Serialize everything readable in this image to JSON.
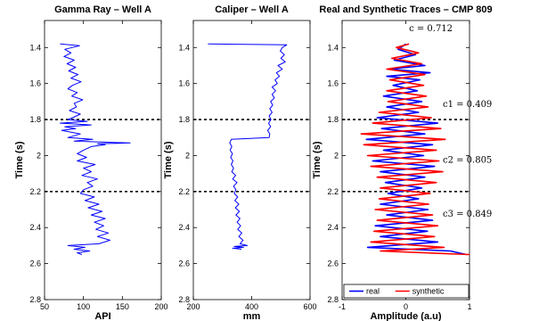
{
  "colors": {
    "blue": "#0000ff",
    "red": "#ff0000",
    "marker": "#000000"
  },
  "chart_data": [
    {
      "type": "line",
      "title": "Gamma Ray – Well A",
      "xlabel": "API",
      "ylabel": "Time (s)",
      "xlim": [
        50,
        200
      ],
      "ylim": [
        1.25,
        2.8
      ],
      "y_inverted": true,
      "xticks": [
        50,
        100,
        150,
        200
      ],
      "yticks": [
        1.4,
        1.6,
        1.8,
        2,
        2.2,
        2.4,
        2.6,
        2.8
      ],
      "xtick_labels": [
        "50",
        "100",
        "150",
        "200"
      ],
      "ytick_labels": [
        "1.4",
        "1.6",
        "1.8",
        "2",
        "2.2",
        "2.4",
        "2.6",
        "2.8"
      ],
      "horizontal_markers": [
        1.8,
        2.2
      ],
      "series": [
        {
          "color": "blue",
          "points": [
            [
              1.38,
              70
            ],
            [
              1.39,
              95
            ],
            [
              1.41,
              76
            ],
            [
              1.43,
              84
            ],
            [
              1.45,
              75
            ],
            [
              1.47,
              88
            ],
            [
              1.49,
              79
            ],
            [
              1.51,
              90
            ],
            [
              1.53,
              81
            ],
            [
              1.55,
              93
            ],
            [
              1.57,
              84
            ],
            [
              1.59,
              97
            ],
            [
              1.61,
              86
            ],
            [
              1.63,
              80
            ],
            [
              1.65,
              92
            ],
            [
              1.67,
              85
            ],
            [
              1.69,
              99
            ],
            [
              1.71,
              88
            ],
            [
              1.73,
              91
            ],
            [
              1.75,
              82
            ],
            [
              1.77,
              96
            ],
            [
              1.79,
              86
            ],
            [
              1.8,
              80
            ],
            [
              1.81,
              105
            ],
            [
              1.82,
              70
            ],
            [
              1.83,
              110
            ],
            [
              1.84,
              76
            ],
            [
              1.85,
              90
            ],
            [
              1.86,
              72
            ],
            [
              1.88,
              96
            ],
            [
              1.9,
              80
            ],
            [
              1.91,
              112
            ],
            [
              1.92,
              88
            ],
            [
              1.93,
              160
            ],
            [
              1.935,
              118
            ],
            [
              1.94,
              128
            ],
            [
              1.95,
              110
            ],
            [
              1.97,
              100
            ],
            [
              1.99,
              92
            ],
            [
              2.01,
              104
            ],
            [
              2.03,
              92
            ],
            [
              2.05,
              115
            ],
            [
              2.07,
              100
            ],
            [
              2.09,
              110
            ],
            [
              2.11,
              98
            ],
            [
              2.13,
              118
            ],
            [
              2.15,
              105
            ],
            [
              2.17,
              112
            ],
            [
              2.19,
              100
            ],
            [
              2.21,
              96
            ],
            [
              2.23,
              114
            ],
            [
              2.25,
              102
            ],
            [
              2.27,
              120
            ],
            [
              2.29,
              106
            ],
            [
              2.31,
              124
            ],
            [
              2.33,
              110
            ],
            [
              2.35,
              128
            ],
            [
              2.37,
              114
            ],
            [
              2.39,
              126
            ],
            [
              2.41,
              116
            ],
            [
              2.43,
              132
            ],
            [
              2.45,
              118
            ],
            [
              2.47,
              134
            ],
            [
              2.49,
              120
            ],
            [
              2.5,
              80
            ],
            [
              2.51,
              102
            ],
            [
              2.52,
              88
            ],
            [
              2.53,
              108
            ],
            [
              2.54,
              92
            ],
            [
              2.55,
              98
            ]
          ]
        }
      ]
    },
    {
      "type": "line",
      "title": "Caliper – Well A",
      "xlabel": "mm",
      "ylabel": "Time (s)",
      "xlim": [
        200,
        600
      ],
      "ylim": [
        1.25,
        2.8
      ],
      "y_inverted": true,
      "xticks": [
        200,
        400,
        600
      ],
      "yticks": [
        1.4,
        1.6,
        1.8,
        2,
        2.2,
        2.4,
        2.6,
        2.8
      ],
      "xtick_labels": [
        "200",
        "400",
        "600"
      ],
      "ytick_labels": [
        "1.4",
        "1.6",
        "1.8",
        "2",
        "2.2",
        "2.4",
        "2.6",
        "2.8"
      ],
      "horizontal_markers": [
        1.8,
        2.2
      ],
      "series": [
        {
          "color": "blue",
          "points": [
            [
              1.38,
              250
            ],
            [
              1.385,
              520
            ],
            [
              1.4,
              505
            ],
            [
              1.42,
              498
            ],
            [
              1.44,
              512
            ],
            [
              1.46,
              500
            ],
            [
              1.48,
              515
            ],
            [
              1.5,
              490
            ],
            [
              1.52,
              505
            ],
            [
              1.54,
              485
            ],
            [
              1.56,
              495
            ],
            [
              1.58,
              480
            ],
            [
              1.6,
              488
            ],
            [
              1.62,
              470
            ],
            [
              1.64,
              482
            ],
            [
              1.66,
              470
            ],
            [
              1.68,
              478
            ],
            [
              1.7,
              465
            ],
            [
              1.72,
              472
            ],
            [
              1.74,
              462
            ],
            [
              1.76,
              470
            ],
            [
              1.78,
              460
            ],
            [
              1.8,
              466
            ],
            [
              1.82,
              458
            ],
            [
              1.84,
              465
            ],
            [
              1.86,
              455
            ],
            [
              1.88,
              462
            ],
            [
              1.9,
              460
            ],
            [
              1.91,
              330
            ],
            [
              1.93,
              325
            ],
            [
              1.95,
              332
            ],
            [
              1.97,
              326
            ],
            [
              1.99,
              334
            ],
            [
              2.01,
              328
            ],
            [
              2.03,
              336
            ],
            [
              2.05,
              330
            ],
            [
              2.07,
              338
            ],
            [
              2.09,
              332
            ],
            [
              2.11,
              345
            ],
            [
              2.13,
              335
            ],
            [
              2.15,
              350
            ],
            [
              2.17,
              338
            ],
            [
              2.19,
              346
            ],
            [
              2.21,
              340
            ],
            [
              2.23,
              352
            ],
            [
              2.25,
              342
            ],
            [
              2.27,
              356
            ],
            [
              2.29,
              344
            ],
            [
              2.31,
              358
            ],
            [
              2.33,
              346
            ],
            [
              2.35,
              360
            ],
            [
              2.37,
              350
            ],
            [
              2.39,
              362
            ],
            [
              2.41,
              352
            ],
            [
              2.43,
              366
            ],
            [
              2.45,
              356
            ],
            [
              2.47,
              370
            ],
            [
              2.49,
              360
            ],
            [
              2.5,
              385
            ],
            [
              2.505,
              340
            ],
            [
              2.51,
              372
            ],
            [
              2.515,
              335
            ],
            [
              2.52,
              365
            ]
          ]
        }
      ]
    },
    {
      "type": "line",
      "title": "Real and Synthetic Traces – CMP 809",
      "xlabel": "Amplitude (a.u)",
      "ylabel": "Time (s)",
      "xlim": [
        -1,
        1
      ],
      "ylim": [
        1.25,
        2.8
      ],
      "y_inverted": true,
      "xticks": [
        -1,
        0,
        1
      ],
      "yticks": [
        1.4,
        1.6,
        1.8,
        2,
        2.2,
        2.4,
        2.6,
        2.8
      ],
      "xtick_labels": [
        "-1",
        "0",
        "1"
      ],
      "ytick_labels": [
        "1.4",
        "1.6",
        "1.8",
        "2",
        "2.2",
        "2.4",
        "2.6",
        "2.8"
      ],
      "horizontal_markers": [
        1.8,
        2.2
      ],
      "legend": {
        "placement": "bottom-left"
      },
      "annotations": [
        {
          "text": "c = 0.712",
          "at": [
            0.05,
            1.31
          ]
        },
        {
          "text": "c1 = 0.409",
          "at": [
            0.58,
            1.73
          ]
        },
        {
          "text": "c2 = 0.805",
          "at": [
            0.58,
            2.04
          ]
        },
        {
          "text": "c3 = 0.849",
          "at": [
            0.58,
            2.34
          ]
        }
      ],
      "series": [
        {
          "name": "real",
          "color": "blue",
          "points": [
            [
              1.38,
              0.0
            ],
            [
              1.41,
              -0.12
            ],
            [
              1.44,
              0.15
            ],
            [
              1.47,
              -0.18
            ],
            [
              1.5,
              0.3
            ],
            [
              1.52,
              -0.25
            ],
            [
              1.54,
              0.38
            ],
            [
              1.56,
              -0.3
            ],
            [
              1.58,
              0.22
            ],
            [
              1.61,
              -0.2
            ],
            [
              1.64,
              0.18
            ],
            [
              1.67,
              -0.35
            ],
            [
              1.7,
              0.25
            ],
            [
              1.73,
              -0.3
            ],
            [
              1.76,
              0.2
            ],
            [
              1.79,
              -0.45
            ],
            [
              1.82,
              0.5
            ],
            [
              1.85,
              -0.38
            ],
            [
              1.88,
              0.3
            ],
            [
              1.91,
              -0.62
            ],
            [
              1.94,
              0.42
            ],
            [
              1.97,
              -0.35
            ],
            [
              2.0,
              0.28
            ],
            [
              2.03,
              -0.52
            ],
            [
              2.06,
              0.45
            ],
            [
              2.09,
              -0.4
            ],
            [
              2.12,
              0.3
            ],
            [
              2.15,
              -0.32
            ],
            [
              2.18,
              0.25
            ],
            [
              2.21,
              -0.28
            ],
            [
              2.24,
              0.2
            ],
            [
              2.27,
              -0.4
            ],
            [
              2.3,
              0.35
            ],
            [
              2.33,
              -0.3
            ],
            [
              2.36,
              0.42
            ],
            [
              2.39,
              -0.48
            ],
            [
              2.42,
              0.34
            ],
            [
              2.45,
              -0.4
            ],
            [
              2.48,
              0.5
            ],
            [
              2.51,
              -0.6
            ],
            [
              2.53,
              0.7
            ],
            [
              2.55,
              0.95
            ]
          ]
        },
        {
          "name": "synthetic",
          "color": "red",
          "points": [
            [
              1.38,
              0.05
            ],
            [
              1.4,
              -0.15
            ],
            [
              1.43,
              0.2
            ],
            [
              1.46,
              -0.22
            ],
            [
              1.49,
              0.25
            ],
            [
              1.52,
              -0.3
            ],
            [
              1.55,
              0.3
            ],
            [
              1.58,
              -0.25
            ],
            [
              1.61,
              0.28
            ],
            [
              1.64,
              -0.3
            ],
            [
              1.67,
              0.32
            ],
            [
              1.7,
              -0.28
            ],
            [
              1.73,
              0.35
            ],
            [
              1.76,
              -0.42
            ],
            [
              1.79,
              0.4
            ],
            [
              1.82,
              -0.52
            ],
            [
              1.85,
              0.55
            ],
            [
              1.88,
              -0.7
            ],
            [
              1.91,
              0.62
            ],
            [
              1.94,
              -0.66
            ],
            [
              1.97,
              0.48
            ],
            [
              2.0,
              -0.6
            ],
            [
              2.03,
              0.52
            ],
            [
              2.06,
              -0.55
            ],
            [
              2.09,
              0.58
            ],
            [
              2.12,
              -0.45
            ],
            [
              2.15,
              0.48
            ],
            [
              2.18,
              -0.4
            ],
            [
              2.21,
              0.38
            ],
            [
              2.24,
              -0.42
            ],
            [
              2.27,
              0.36
            ],
            [
              2.3,
              -0.48
            ],
            [
              2.33,
              0.42
            ],
            [
              2.36,
              -0.45
            ],
            [
              2.39,
              0.5
            ],
            [
              2.42,
              -0.5
            ],
            [
              2.45,
              0.45
            ],
            [
              2.48,
              -0.55
            ],
            [
              2.51,
              0.6
            ],
            [
              2.53,
              -0.4
            ],
            [
              2.55,
              1.0
            ]
          ]
        }
      ]
    }
  ]
}
